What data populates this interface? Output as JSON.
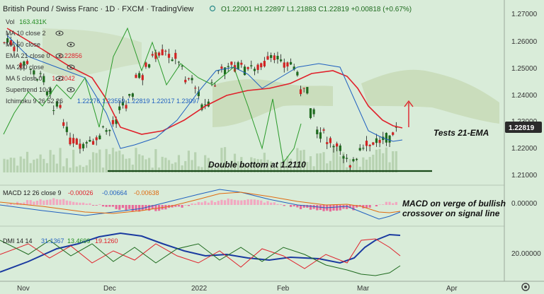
{
  "header": {
    "symbol": "British Pound / Swiss Franc · 1D · FXCM · TradingView",
    "ohlc": "O1.22001  H1.22897  L1.21883  C1.22819  +0.00818 (+0.67%)"
  },
  "indicators": [
    {
      "label": "Vol",
      "value": "163.431K",
      "color": "#1f8a1f"
    },
    {
      "label": "MA 10 close 2",
      "value": "",
      "color": "#b58a8a"
    },
    {
      "label": "MA 50 close",
      "value": "",
      "color": "#b58a8a"
    },
    {
      "label": "EMA 21 close 0",
      "value": "1.22856",
      "color": "#e0202a"
    },
    {
      "label": "MA 200 close",
      "value": "",
      "color": "#b58a8a"
    },
    {
      "label": "MA 5 close 0",
      "value": "1.22042",
      "color": "#e0202a"
    },
    {
      "label": "Supertrend 10 3",
      "value": "",
      "color": "#b58a8a"
    },
    {
      "label": "Ichimoku 9 26 52 26",
      "value": "1.22276  1.23559  1.22819  1.22017  1.23097",
      "color": "#2060c0"
    }
  ],
  "price_axis": {
    "ticks": [
      "1.27000",
      "1.26000",
      "1.25000",
      "1.24000",
      "1.23000",
      "1.22000",
      "1.21000"
    ],
    "current": "1.22819"
  },
  "macd": {
    "label": "MACD 12 26 close 9",
    "values": [
      "-0.00026",
      "-0.00664",
      "-0.00638"
    ],
    "value_colors": [
      "#e0202a",
      "#2060c0",
      "#e06a10"
    ],
    "axis": "0.00000"
  },
  "dmi": {
    "label": "DMI 14 14",
    "values": [
      "31.1367",
      "13.4699",
      "19.1260"
    ],
    "value_colors": [
      "#2060c0",
      "#1f8a1f",
      "#e0202a"
    ],
    "axis": "20.00000"
  },
  "x_axis": [
    "Nov",
    "Dec",
    "2022",
    "Feb",
    "Mar",
    "Apr"
  ],
  "annotations": {
    "tests_ema": "Tests 21-EMA",
    "double_bottom": "Double bottom at 1.2110",
    "macd_note_1": "MACD on verge of bullish",
    "macd_note_2": "crossover on signal line"
  },
  "icons": [
    "eye-icon",
    "gear-icon"
  ],
  "colors": {
    "background": "#d9ecd9",
    "bull": "#1f6b1f",
    "bear": "#d12222",
    "ema": "#e0202a",
    "macd_line": "#2060c0",
    "signal": "#e06a10",
    "cloud": "#c6d9b4",
    "current_price_bg": "#2b2b2b"
  }
}
